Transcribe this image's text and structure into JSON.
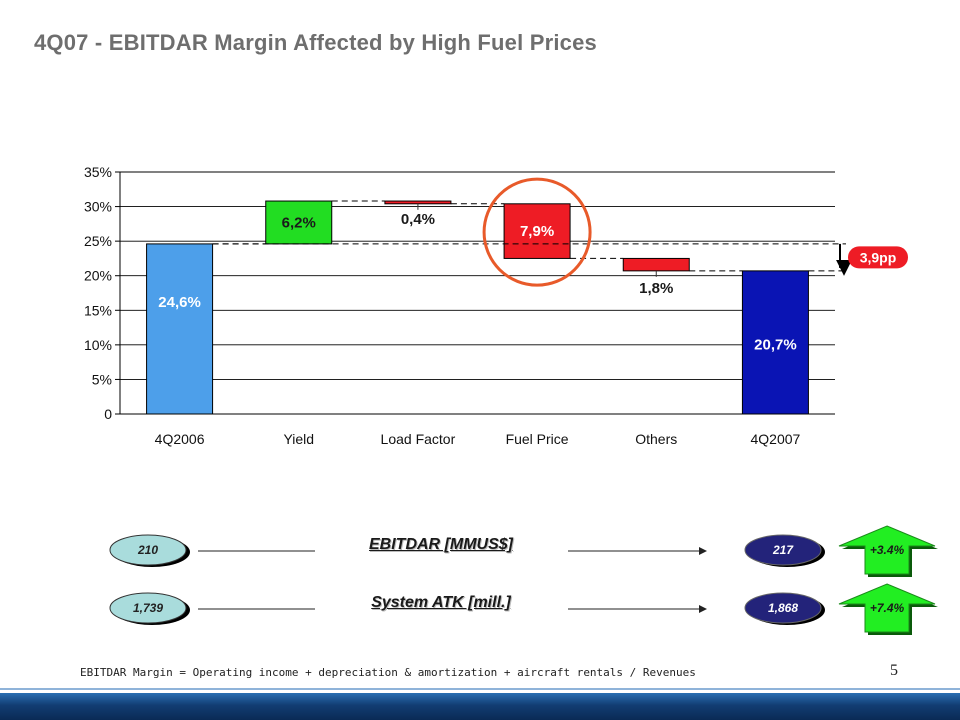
{
  "page": {
    "title": "4Q07 - EBITDAR Margin Affected by High Fuel Prices",
    "page_number": "5",
    "footnote": "EBITDAR Margin = Operating income + depreciation & amortization + aircraft rentals / Revenues"
  },
  "chart_data": {
    "type": "bar",
    "subtype": "waterfall",
    "categories": [
      "4Q2006",
      "Yield",
      "Load Factor",
      "Fuel Price",
      "Others",
      "4Q2007"
    ],
    "bars": [
      {
        "category": "4Q2006",
        "kind": "total",
        "value": 24.6,
        "label": "24,6%",
        "color": "#4d9fea"
      },
      {
        "category": "Yield",
        "kind": "increase",
        "value": 6.2,
        "label": "6,2%",
        "color": "#22dd22"
      },
      {
        "category": "Load Factor",
        "kind": "decrease",
        "value": 0.4,
        "label": "0,4%",
        "color": "#ee1c25"
      },
      {
        "category": "Fuel Price",
        "kind": "decrease",
        "value": 7.9,
        "label": "7,9%",
        "color": "#ee1c25"
      },
      {
        "category": "Others",
        "kind": "decrease",
        "value": 1.8,
        "label": "1,8%",
        "color": "#ee1c25"
      },
      {
        "category": "4Q2007",
        "kind": "total",
        "value": 20.7,
        "label": "20,7%",
        "color": "#0a14b4"
      }
    ],
    "ylim": [
      0,
      35
    ],
    "yticks": [
      0,
      5,
      10,
      15,
      20,
      25,
      30,
      35
    ],
    "ytick_labels": [
      "0",
      "5%",
      "10%",
      "15%",
      "20%",
      "25%",
      "30%",
      "35%"
    ],
    "grid": true,
    "annotations": {
      "difference_label": "3,9pp",
      "difference_color": "#ee1c25",
      "highlight_category": "Fuel Price",
      "highlight_color": "#e85a2a"
    }
  },
  "metrics": [
    {
      "label": "EBITDAR [MMUS$]",
      "before": "210",
      "after": "217",
      "change": "+3.4%"
    },
    {
      "label": "System ATK [mill.]",
      "before": "1,739",
      "after": "1,868",
      "change": "+7.4%"
    }
  ],
  "colors": {
    "before_pill": "#a9dcdc",
    "after_pill": "#23237a",
    "arrow": "#22ee22",
    "title": "#6e6e6e"
  }
}
